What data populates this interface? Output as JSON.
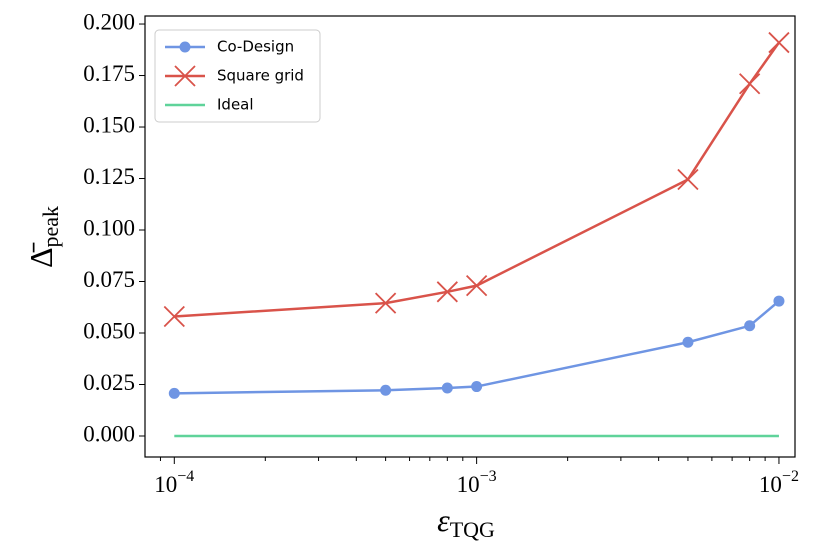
{
  "chart_data": {
    "type": "line",
    "xlabel": "ε",
    "xlabel_sub": "TQG",
    "ylabel": "Δ̄",
    "ylabel_sub": "peak",
    "x": [
      0.0001,
      0.0005,
      0.0008,
      0.001,
      0.005,
      0.008,
      0.01
    ],
    "series": [
      {
        "name": "Co-Design",
        "color": "#6f95e3",
        "marker": "circle",
        "values": [
          0.0207,
          0.0222,
          0.0233,
          0.024,
          0.0455,
          0.0535,
          0.0655
        ]
      },
      {
        "name": "Square grid",
        "color": "#d9534a",
        "marker": "x",
        "values": [
          0.058,
          0.0645,
          0.07,
          0.073,
          0.1245,
          0.171,
          0.191
        ]
      },
      {
        "name": "Ideal",
        "color": "#5fd39a",
        "marker": "none",
        "values": [
          0,
          0,
          0,
          0,
          0,
          0,
          0
        ]
      }
    ],
    "xscale": "log",
    "xlim": [
      8e-05,
      0.0113
    ],
    "ylim": [
      -0.0102,
      0.2039
    ],
    "xticks": [
      {
        "value": 0.0001,
        "label": "10",
        "exponent": "−4"
      },
      {
        "value": 0.001,
        "label": "10",
        "exponent": "−3"
      },
      {
        "value": 0.01,
        "label": "10",
        "exponent": "−2"
      }
    ],
    "xminorticks": [
      9e-05,
      0.0002,
      0.0003,
      0.0004,
      0.0005,
      0.0006,
      0.0007,
      0.0008,
      0.0009,
      0.002,
      0.003,
      0.004,
      0.005,
      0.006,
      0.007,
      0.008,
      0.009
    ],
    "yticks": [
      {
        "value": 0,
        "label": "0.000"
      },
      {
        "value": 0.025,
        "label": "0.025"
      },
      {
        "value": 0.05,
        "label": "0.050"
      },
      {
        "value": 0.075,
        "label": "0.075"
      },
      {
        "value": 0.1,
        "label": "0.100"
      },
      {
        "value": 0.125,
        "label": "0.125"
      },
      {
        "value": 0.15,
        "label": "0.150"
      },
      {
        "value": 0.175,
        "label": "0.175"
      },
      {
        "value": 0.2,
        "label": "0.200"
      }
    ],
    "legend": "upper left"
  }
}
